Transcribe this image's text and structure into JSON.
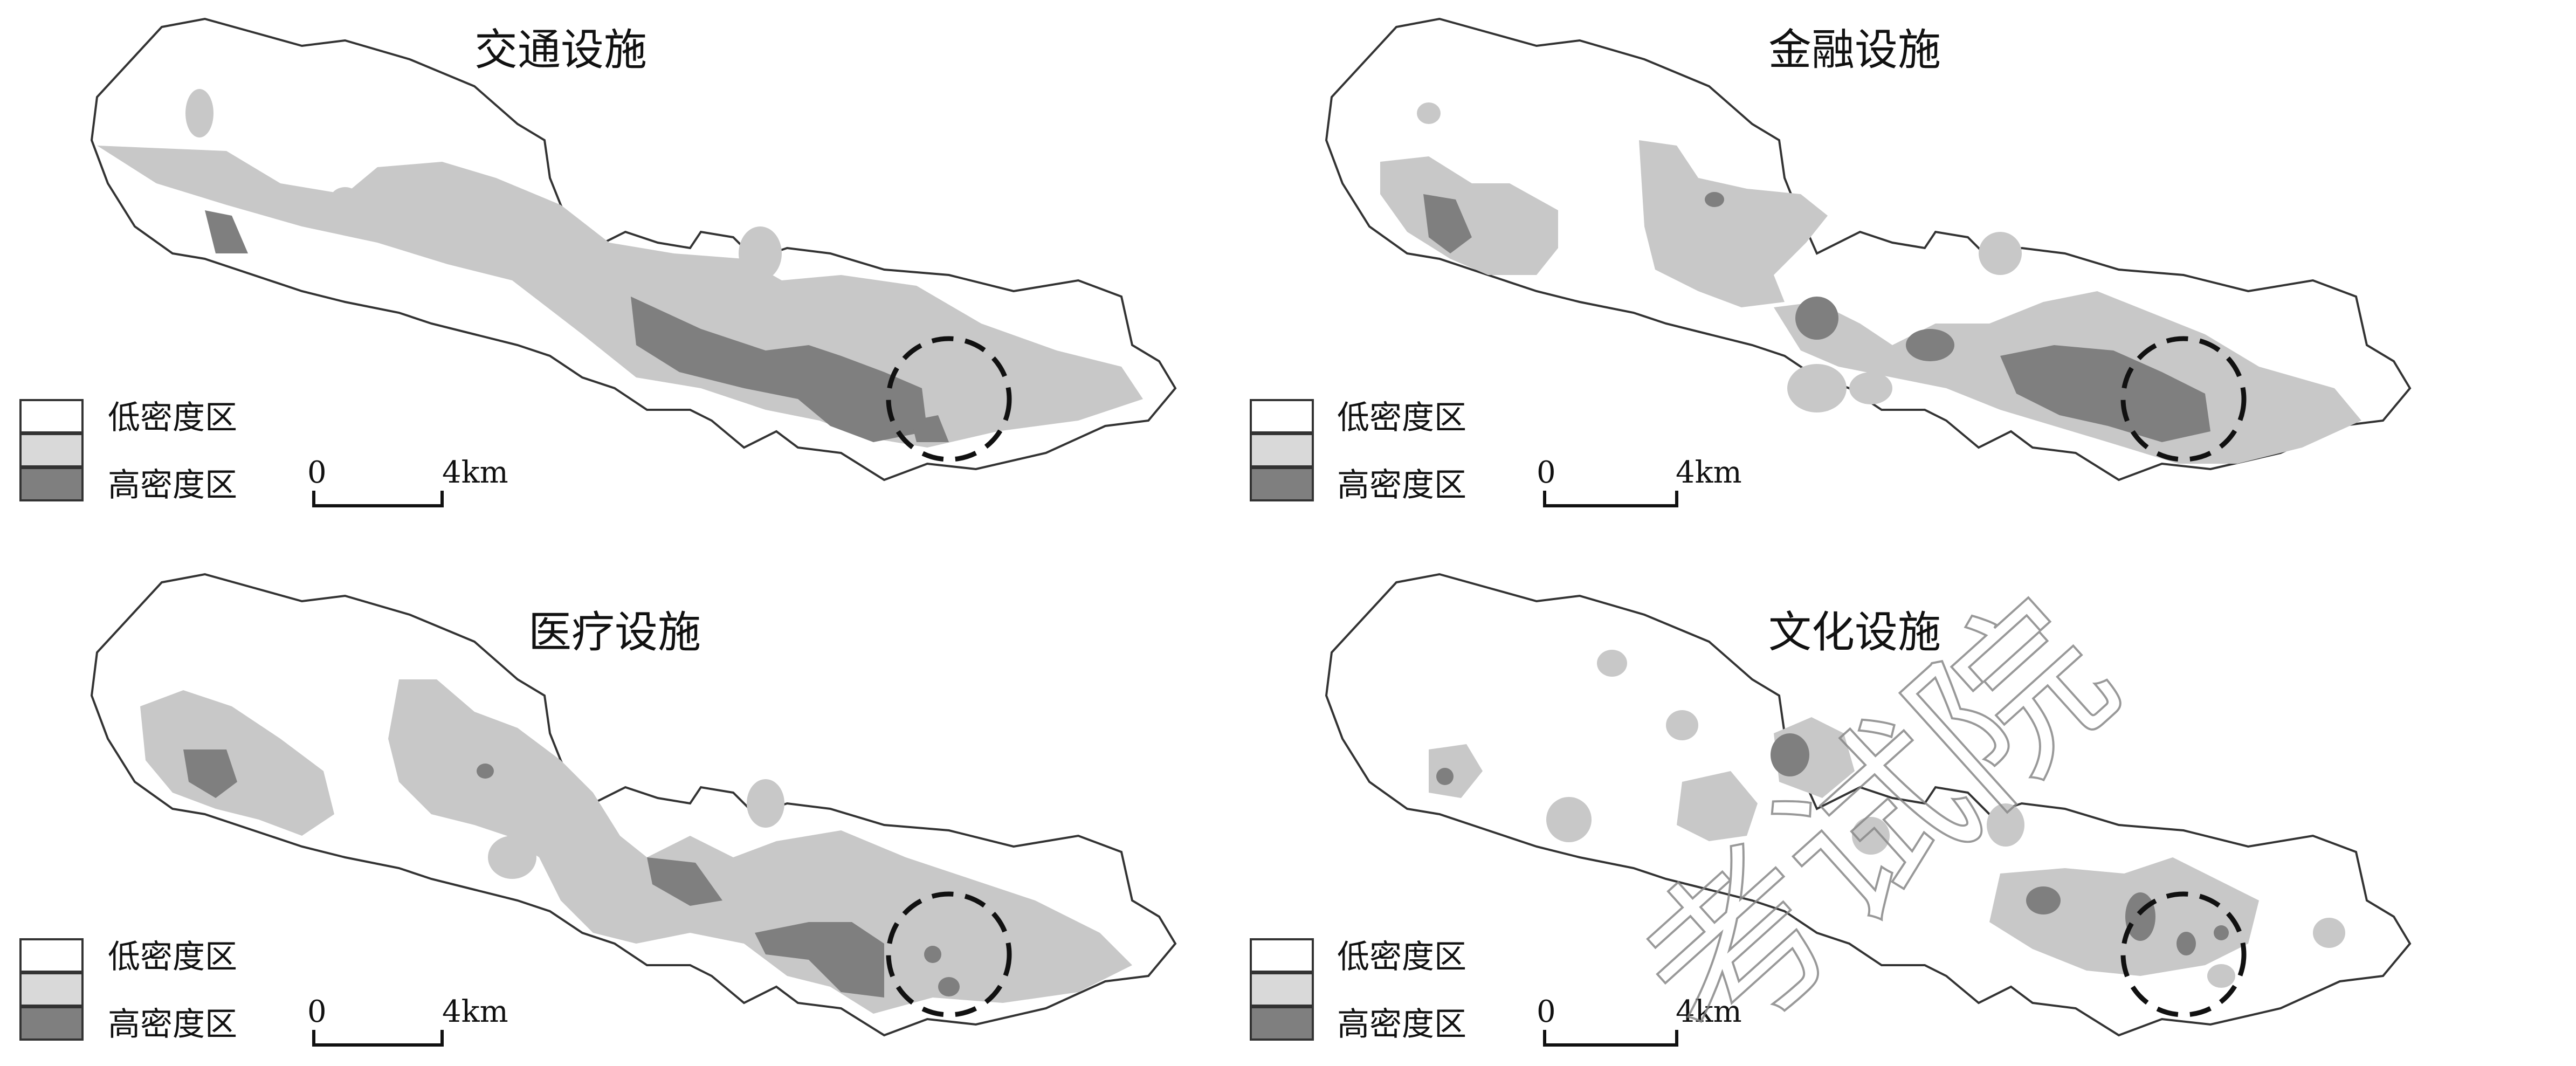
{
  "figure": {
    "panels": [
      {
        "title": "交通设施"
      },
      {
        "title": "金融设施"
      },
      {
        "title": "医疗设施"
      },
      {
        "title": "文化设施"
      }
    ],
    "legend": {
      "low_label": "低密度区",
      "high_label": "高密度区"
    },
    "scale_bar": {
      "start_label": "0",
      "end_label": "4km"
    },
    "watermark": {
      "text": "考试院"
    },
    "colors": {
      "low": "#ffffff",
      "medium": "#c8c8c8",
      "high": "#7f7f7f",
      "outline": "#333333",
      "circle": "#111111"
    }
  }
}
